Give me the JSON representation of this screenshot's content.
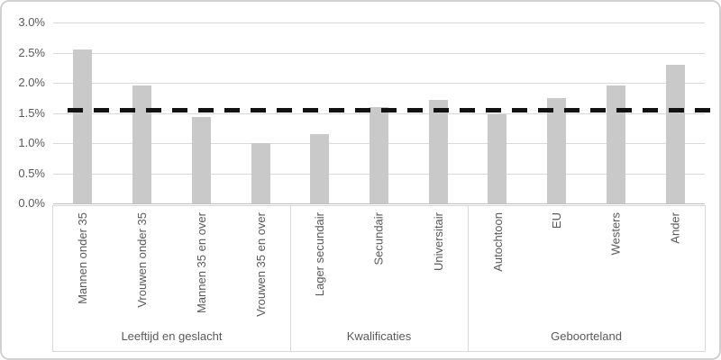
{
  "chart_data": {
    "type": "bar",
    "unit": "percent",
    "ylim": [
      0,
      3
    ],
    "grid": true,
    "y_ticks": [
      {
        "value": 0,
        "label": "0.0%"
      },
      {
        "value": 0.5,
        "label": "0.5%"
      },
      {
        "value": 1,
        "label": "1.0%"
      },
      {
        "value": 1.5,
        "label": "1.5%"
      },
      {
        "value": 2,
        "label": "2.0%"
      },
      {
        "value": 2.5,
        "label": "2.5%"
      },
      {
        "value": 3,
        "label": "3.0%"
      }
    ],
    "groups": [
      {
        "label": "Leeftijd en geslacht",
        "categories": [
          "Mannen onder 35",
          "Vrouwen onder 35",
          "Mannen 35 en over",
          "Vrouwen 35 en over"
        ],
        "values": [
          2.55,
          1.95,
          1.43,
          1.0
        ]
      },
      {
        "label": "Kwalificaties",
        "categories": [
          "Lager secundair",
          "Secundair",
          "Universitair"
        ],
        "values": [
          1.15,
          1.6,
          1.72
        ]
      },
      {
        "label": "Geboorteland",
        "categories": [
          "Autochtoon",
          "EU",
          "Westers",
          "Ander"
        ],
        "values": [
          1.48,
          1.75,
          1.95,
          2.3
        ]
      }
    ],
    "reference_line": {
      "value": 1.55,
      "style": "dashed",
      "color": "#121212"
    }
  },
  "colors": {
    "bar": "#c9c9c9",
    "gridline": "#d9d9d9",
    "axis_line": "#bfbfbf",
    "text": "#595959",
    "frame_border": "#d2d2d2",
    "label_box_border": "#d9d9d9",
    "reference": "#121212"
  }
}
